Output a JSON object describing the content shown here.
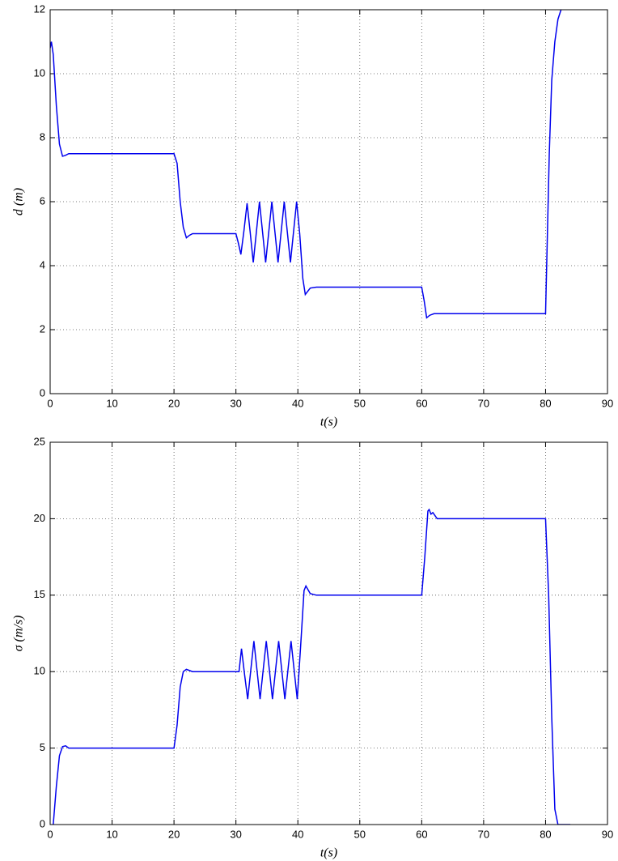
{
  "chart_data": [
    {
      "type": "line",
      "xlabel": "t(s)",
      "ylabel": "d (m)",
      "xlim": [
        0,
        90
      ],
      "xticks": [
        0,
        10,
        20,
        30,
        40,
        50,
        60,
        70,
        80,
        90
      ],
      "ylim": [
        0,
        12
      ],
      "yticks": [
        0,
        2,
        4,
        6,
        8,
        10,
        12
      ],
      "grid": true,
      "series": [
        {
          "name": "d",
          "color": "#0000ee",
          "x": [
            0,
            0.2,
            0.5,
            1,
            1.5,
            2,
            2.5,
            3,
            4,
            20,
            20.5,
            21,
            21.5,
            22,
            22.5,
            23,
            30,
            30.4,
            30.8,
            31.3,
            31.8,
            32.3,
            32.8,
            33.3,
            33.8,
            34.3,
            34.8,
            35.3,
            35.8,
            36.3,
            36.8,
            37.3,
            37.8,
            38.3,
            38.8,
            39.3,
            39.8,
            40.3,
            40.8,
            41.2,
            42,
            43,
            60,
            60.4,
            60.8,
            61.3,
            62,
            80,
            80.3,
            80.6,
            81,
            81.5,
            82,
            82.5
          ],
          "values": [
            10.8,
            11,
            10.6,
            9,
            7.8,
            7.42,
            7.45,
            7.5,
            7.5,
            7.5,
            7.2,
            6,
            5.2,
            4.87,
            4.95,
            5,
            5,
            4.7,
            4.35,
            5.1,
            5.95,
            5.05,
            4.1,
            5.05,
            6,
            5.05,
            4.1,
            5.05,
            6,
            5.05,
            4.1,
            5.05,
            6,
            5.05,
            4.1,
            5.05,
            6,
            5,
            3.6,
            3.1,
            3.3,
            3.33,
            3.33,
            2.9,
            2.37,
            2.45,
            2.5,
            2.5,
            5,
            7.5,
            9.8,
            11,
            11.7,
            12
          ]
        }
      ]
    },
    {
      "type": "line",
      "xlabel": "t(s)",
      "ylabel": "σ (m/s)",
      "xlim": [
        0,
        90
      ],
      "xticks": [
        0,
        10,
        20,
        30,
        40,
        50,
        60,
        70,
        80,
        90
      ],
      "ylim": [
        0,
        25
      ],
      "yticks": [
        0,
        5,
        10,
        15,
        20,
        25
      ],
      "grid": true,
      "series": [
        {
          "name": "σ",
          "color": "#0000ee",
          "x": [
            0.5,
            1,
            1.5,
            2,
            2.5,
            3,
            20,
            20.5,
            21,
            21.5,
            22,
            23,
            30.5,
            30.9,
            31.4,
            31.9,
            32.4,
            32.9,
            33.4,
            33.9,
            34.4,
            34.9,
            35.4,
            35.9,
            36.4,
            36.9,
            37.4,
            37.9,
            38.4,
            38.9,
            39.4,
            39.9,
            40.5,
            41,
            41.3,
            42,
            43,
            60,
            60.5,
            61,
            61.2,
            61.5,
            61.8,
            62.5,
            80,
            80.5,
            81,
            81.5,
            82,
            84
          ],
          "values": [
            0,
            2.5,
            4.5,
            5.1,
            5.15,
            5,
            5,
            6.5,
            9,
            10,
            10.15,
            10,
            10,
            11.5,
            9.8,
            8.2,
            10.1,
            12,
            10.1,
            8.2,
            10.1,
            12,
            10.1,
            8.2,
            10.1,
            12,
            10.1,
            8.2,
            10.1,
            12,
            10.1,
            8.2,
            12,
            15.3,
            15.6,
            15.1,
            15,
            15,
            17.5,
            20.5,
            20.6,
            20.3,
            20.4,
            20,
            20,
            15,
            7,
            1,
            0,
            0
          ]
        }
      ]
    }
  ]
}
